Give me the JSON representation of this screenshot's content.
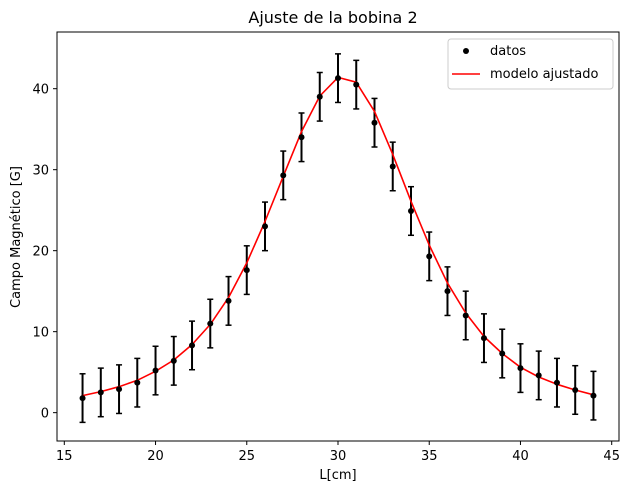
{
  "chart_data": {
    "type": "scatter",
    "title": "Ajuste de la bobina 2",
    "xlabel": "L[cm]",
    "ylabel": "Campo Magnético [G]",
    "xlim": [
      14.6,
      45.4
    ],
    "ylim": [
      -3.5,
      47.0
    ],
    "xticks": [
      15,
      20,
      25,
      30,
      35,
      40,
      45
    ],
    "yticks": [
      0,
      10,
      20,
      30,
      40
    ],
    "grid": false,
    "legend_position": "top-right",
    "colors": {
      "datos": "#000000",
      "modelo": "#ff0000"
    },
    "error": 3.0,
    "series": [
      {
        "name": "datos",
        "kind": "errorbar",
        "x": [
          16,
          17,
          18,
          19,
          20,
          21,
          22,
          23,
          24,
          25,
          26,
          27,
          28,
          29,
          30,
          31,
          32,
          33,
          34,
          35,
          36,
          37,
          38,
          39,
          40,
          41,
          42,
          43,
          44
        ],
        "y": [
          1.8,
          2.5,
          2.9,
          3.7,
          5.2,
          6.4,
          8.3,
          11.0,
          13.8,
          17.6,
          23.0,
          29.3,
          34.0,
          39.0,
          41.3,
          40.5,
          35.8,
          30.4,
          24.9,
          19.3,
          15.0,
          12.0,
          9.2,
          7.3,
          5.5,
          4.6,
          3.7,
          2.8,
          2.1
        ]
      },
      {
        "name": "modelo ajustado",
        "kind": "line",
        "x": [
          16,
          17,
          18,
          19,
          20,
          21,
          22,
          23,
          24,
          25,
          26,
          27,
          28,
          29,
          30,
          31,
          32,
          33,
          34,
          35,
          36,
          37,
          38,
          39,
          40,
          41,
          42,
          43,
          44
        ],
        "y": [
          2.1,
          2.6,
          3.2,
          4.0,
          5.1,
          6.5,
          8.4,
          10.9,
          14.2,
          18.5,
          23.6,
          29.2,
          34.7,
          39.1,
          41.4,
          40.8,
          37.2,
          31.9,
          26.1,
          20.7,
          16.0,
          12.3,
          9.4,
          7.3,
          5.6,
          4.4,
          3.5,
          2.8,
          2.2
        ]
      }
    ]
  }
}
